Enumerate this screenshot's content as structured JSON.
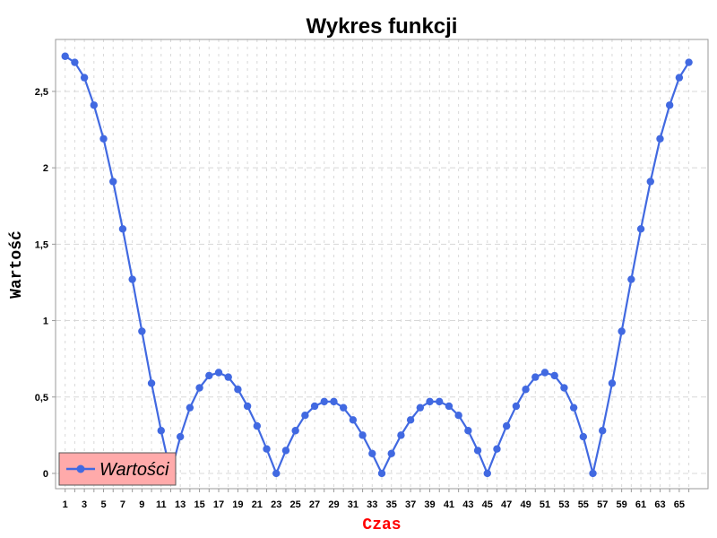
{
  "chart_data": {
    "type": "line",
    "title": "Wykres funkcji",
    "xlabel": "Czas",
    "ylabel": "Wartość",
    "xlim": [
      0,
      68
    ],
    "ylim": [
      -0.1,
      2.84
    ],
    "grid": true,
    "legend_position": "bottom-left",
    "colors": {
      "series": "#4169e1",
      "xlabel": "#ff0000",
      "legend_bg": "#ffaaaa",
      "grid": "#d8d8d8"
    },
    "y_ticks": [
      {
        "value": 0,
        "label": "0"
      },
      {
        "value": 0.5,
        "label": "0,5"
      },
      {
        "value": 1,
        "label": "1"
      },
      {
        "value": 1.5,
        "label": "1,5"
      },
      {
        "value": 2,
        "label": "2"
      },
      {
        "value": 2.5,
        "label": "2,5"
      }
    ],
    "x_tick_labels": [
      "1",
      "3",
      "5",
      "7",
      "9",
      "11",
      "13",
      "15",
      "17",
      "19",
      "21",
      "23",
      "25",
      "27",
      "29",
      "31",
      "33",
      "35",
      "37",
      "39",
      "41",
      "43",
      "45",
      "47",
      "49",
      "51",
      "53",
      "55",
      "57",
      "59",
      "61",
      "63",
      "65"
    ],
    "series": [
      {
        "name": "Wartości",
        "x": [
          1,
          2,
          3,
          4,
          5,
          6,
          7,
          8,
          9,
          10,
          11,
          12,
          13,
          14,
          15,
          16,
          17,
          18,
          19,
          20,
          21,
          22,
          23,
          24,
          25,
          26,
          27,
          28,
          29,
          30,
          31,
          32,
          33,
          34,
          35,
          36,
          37,
          38,
          39,
          40,
          41,
          42,
          43,
          44,
          45,
          46,
          47,
          48,
          49,
          50,
          51,
          52,
          53,
          54,
          55,
          56,
          57,
          58,
          59,
          60,
          61,
          62,
          63,
          64,
          65,
          66
        ],
        "values": [
          2.73,
          2.69,
          2.59,
          2.41,
          2.19,
          1.91,
          1.6,
          1.27,
          0.93,
          0.59,
          0.28,
          0.0,
          0.24,
          0.43,
          0.56,
          0.64,
          0.66,
          0.63,
          0.55,
          0.44,
          0.31,
          0.16,
          0.0,
          0.15,
          0.28,
          0.38,
          0.44,
          0.47,
          0.47,
          0.43,
          0.35,
          0.25,
          0.13,
          0.0,
          0.13,
          0.25,
          0.35,
          0.43,
          0.47,
          0.47,
          0.44,
          0.38,
          0.28,
          0.15,
          0.0,
          0.16,
          0.31,
          0.44,
          0.55,
          0.63,
          0.66,
          0.64,
          0.56,
          0.43,
          0.24,
          0.0,
          0.28,
          0.59,
          0.93,
          1.27,
          1.6,
          1.91,
          2.19,
          2.41,
          2.59,
          2.69
        ]
      }
    ]
  }
}
